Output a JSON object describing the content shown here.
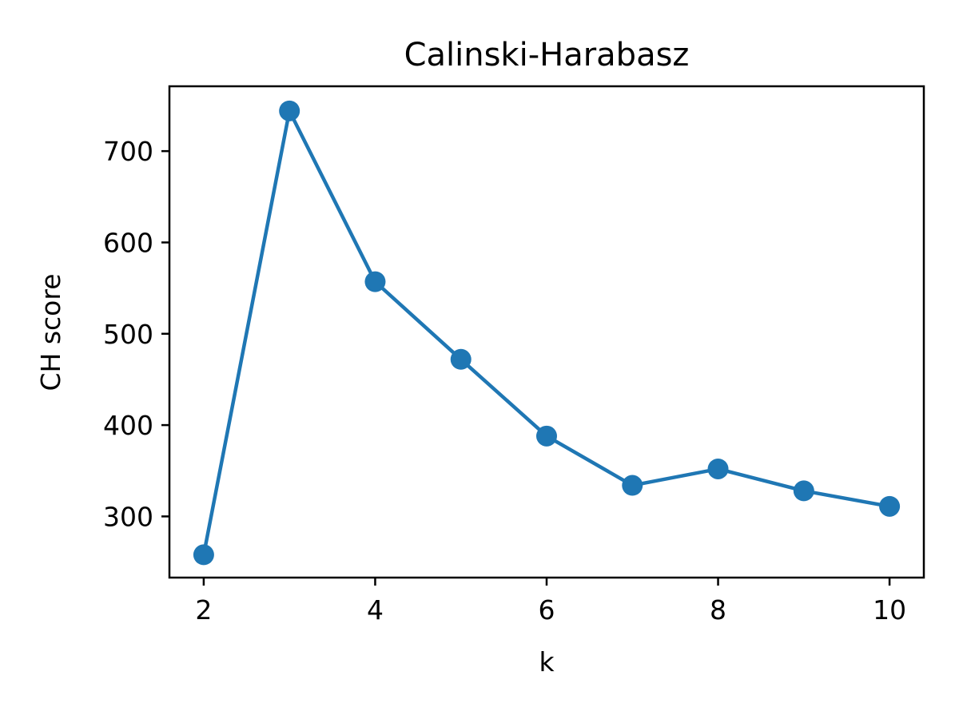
{
  "chart_data": {
    "type": "line",
    "title": "Calinski-Harabasz",
    "xlabel": "k",
    "ylabel": "CH score",
    "xlim": [
      1.6,
      10.4
    ],
    "ylim": [
      233,
      771
    ],
    "x_ticks": [
      2,
      4,
      6,
      8,
      10
    ],
    "y_ticks": [
      300,
      400,
      500,
      600,
      700
    ],
    "grid": false,
    "legend": "none",
    "series": [
      {
        "x": [
          2,
          3,
          4,
          5,
          6,
          7,
          8,
          9,
          10
        ],
        "values": [
          258,
          744,
          557,
          472,
          388,
          334,
          352,
          328,
          311
        ],
        "color": "#1f77b4",
        "marker": "circle"
      }
    ]
  }
}
